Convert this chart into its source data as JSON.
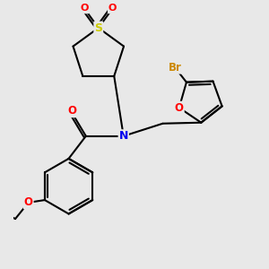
{
  "bg_color": "#e8e8e8",
  "bond_color": "#000000",
  "atom_colors": {
    "N": "#0000ee",
    "O": "#ff0000",
    "S": "#cccc00",
    "Br": "#cc8800"
  },
  "lw": 1.5
}
